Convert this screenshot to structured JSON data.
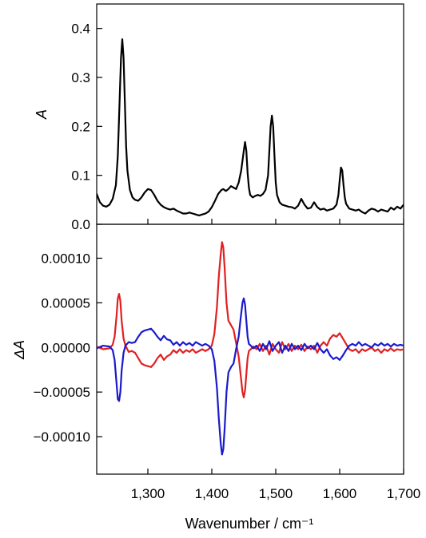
{
  "chart_data": [
    {
      "type": "line",
      "panel": "top",
      "title": "",
      "xlabel": "Wavenumber / cm⁻¹",
      "ylabel": "A",
      "xlim": [
        1220,
        1700
      ],
      "ylim": [
        0.0,
        0.45
      ],
      "xticks": [
        1300,
        1400,
        1500,
        1600,
        1700
      ],
      "xtick_labels": [
        "1,300",
        "1,400",
        "1,500",
        "1,600",
        "1,700"
      ],
      "yticks": [
        0.0,
        0.1,
        0.2,
        0.3,
        0.4
      ],
      "ytick_labels": [
        "0.0",
        "0.1",
        "0.2",
        "0.3",
        "0.4"
      ],
      "grid": false,
      "series": [
        {
          "color": "#000000",
          "x": [
            1220,
            1225,
            1230,
            1235,
            1240,
            1245,
            1250,
            1253,
            1256,
            1258,
            1260,
            1262,
            1264,
            1266,
            1268,
            1272,
            1276,
            1280,
            1285,
            1290,
            1295,
            1300,
            1305,
            1310,
            1315,
            1320,
            1325,
            1330,
            1335,
            1340,
            1345,
            1350,
            1355,
            1360,
            1365,
            1370,
            1375,
            1380,
            1385,
            1390,
            1395,
            1400,
            1405,
            1410,
            1415,
            1418,
            1422,
            1426,
            1430,
            1434,
            1438,
            1442,
            1446,
            1450,
            1452,
            1454,
            1456,
            1458,
            1460,
            1464,
            1468,
            1472,
            1476,
            1480,
            1484,
            1488,
            1490,
            1492,
            1494,
            1496,
            1498,
            1500,
            1502,
            1506,
            1510,
            1515,
            1520,
            1525,
            1530,
            1535,
            1540,
            1545,
            1550,
            1555,
            1560,
            1565,
            1570,
            1575,
            1580,
            1585,
            1590,
            1595,
            1598,
            1600,
            1602,
            1604,
            1606,
            1608,
            1610,
            1615,
            1620,
            1625,
            1630,
            1635,
            1640,
            1645,
            1650,
            1655,
            1660,
            1665,
            1670,
            1675,
            1680,
            1685,
            1690,
            1695,
            1700
          ],
          "y": [
            0.062,
            0.045,
            0.038,
            0.036,
            0.04,
            0.052,
            0.08,
            0.14,
            0.26,
            0.34,
            0.378,
            0.34,
            0.25,
            0.16,
            0.11,
            0.07,
            0.055,
            0.05,
            0.048,
            0.055,
            0.065,
            0.072,
            0.07,
            0.06,
            0.048,
            0.04,
            0.035,
            0.032,
            0.03,
            0.032,
            0.028,
            0.025,
            0.022,
            0.022,
            0.024,
            0.022,
            0.02,
            0.018,
            0.02,
            0.022,
            0.026,
            0.035,
            0.048,
            0.062,
            0.07,
            0.072,
            0.068,
            0.072,
            0.078,
            0.075,
            0.072,
            0.085,
            0.11,
            0.15,
            0.168,
            0.15,
            0.105,
            0.075,
            0.06,
            0.055,
            0.058,
            0.06,
            0.058,
            0.062,
            0.07,
            0.1,
            0.15,
            0.2,
            0.222,
            0.2,
            0.14,
            0.085,
            0.06,
            0.045,
            0.04,
            0.038,
            0.036,
            0.035,
            0.032,
            0.038,
            0.052,
            0.04,
            0.032,
            0.034,
            0.045,
            0.035,
            0.03,
            0.032,
            0.028,
            0.03,
            0.032,
            0.04,
            0.06,
            0.09,
            0.116,
            0.11,
            0.08,
            0.055,
            0.042,
            0.032,
            0.03,
            0.028,
            0.03,
            0.025,
            0.022,
            0.028,
            0.032,
            0.03,
            0.026,
            0.03,
            0.028,
            0.026,
            0.034,
            0.03,
            0.036,
            0.032,
            0.04
          ]
        }
      ]
    },
    {
      "type": "line",
      "panel": "bottom",
      "title": "",
      "xlabel": "Wavenumber / cm⁻¹",
      "ylabel": "ΔA",
      "xlim": [
        1220,
        1700
      ],
      "ylim": [
        -0.000142,
        0.000138
      ],
      "xticks": [
        1300,
        1400,
        1500,
        1600,
        1700
      ],
      "xtick_labels": [
        "1,300",
        "1,400",
        "1,500",
        "1,600",
        "1,700"
      ],
      "yticks": [
        -0.0001,
        -5e-05,
        0.0,
        5e-05,
        0.0001
      ],
      "ytick_labels": [
        "−0.00010",
        "−0.00005",
        "0.00000",
        "0.00005",
        "0.00010"
      ],
      "grid": false,
      "series": [
        {
          "color": "#e02020",
          "x": [
            1220,
            1230,
            1240,
            1245,
            1248,
            1251,
            1253,
            1255,
            1257,
            1259,
            1262,
            1265,
            1270,
            1275,
            1280,
            1285,
            1290,
            1295,
            1300,
            1305,
            1310,
            1315,
            1320,
            1325,
            1330,
            1335,
            1340,
            1345,
            1350,
            1355,
            1360,
            1365,
            1370,
            1375,
            1380,
            1385,
            1390,
            1395,
            1400,
            1404,
            1408,
            1411,
            1414,
            1416,
            1418,
            1420,
            1423,
            1426,
            1430,
            1434,
            1438,
            1442,
            1445,
            1448,
            1450,
            1452,
            1454,
            1456,
            1458,
            1461,
            1465,
            1470,
            1475,
            1480,
            1485,
            1490,
            1495,
            1500,
            1505,
            1510,
            1515,
            1520,
            1525,
            1530,
            1535,
            1540,
            1545,
            1550,
            1555,
            1560,
            1565,
            1570,
            1575,
            1580,
            1585,
            1590,
            1595,
            1600,
            1605,
            1610,
            1615,
            1620,
            1625,
            1630,
            1635,
            1640,
            1645,
            1650,
            1655,
            1660,
            1665,
            1670,
            1675,
            1680,
            1685,
            1690,
            1695,
            1700
          ],
          "y": [
            1e-06,
            -2e-06,
            -1e-06,
            3e-06,
            1.2e-05,
            3.5e-05,
            5.5e-05,
            6e-05,
            5.2e-05,
            3e-05,
            1e-05,
            2e-06,
            -5e-06,
            -4e-06,
            -6e-06,
            -1.2e-05,
            -1.8e-05,
            -2e-05,
            -2.1e-05,
            -2.2e-05,
            -1.8e-05,
            -1.2e-05,
            -8e-06,
            -1.4e-05,
            -1e-05,
            -8e-06,
            -3e-06,
            -6e-06,
            -2e-06,
            -6e-06,
            -3e-06,
            -5e-06,
            -2e-06,
            -6e-06,
            -4e-06,
            -2e-06,
            -4e-06,
            -2e-06,
            2e-06,
            1.5e-05,
            4.5e-05,
            8e-05,
            0.000105,
            0.000118,
            0.000112,
            9e-05,
            5e-05,
            3e-05,
            2.5e-05,
            2e-05,
            5e-06,
            -1e-05,
            -3e-05,
            -5e-05,
            -5.6e-05,
            -4.8e-05,
            -3e-05,
            -1.2e-05,
            -4e-06,
            -2e-06,
            1e-06,
            -2e-06,
            4e-06,
            -4e-06,
            2e-06,
            -8e-06,
            4e-06,
            -2e-06,
            -6e-06,
            6e-06,
            -2e-06,
            4e-06,
            -4e-06,
            2e-06,
            -2e-06,
            3e-06,
            -4e-06,
            1e-06,
            -2e-06,
            2e-06,
            -6e-06,
            2e-06,
            6e-06,
            2e-06,
            1e-05,
            1.4e-05,
            1.2e-05,
            1.6e-05,
            1e-05,
            4e-06,
            -2e-06,
            -4e-06,
            -2e-06,
            -6e-06,
            -2e-06,
            -4e-06,
            -2e-06,
            0.0,
            -4e-06,
            -2e-06,
            -6e-06,
            -2e-06,
            -4e-06,
            -1e-06,
            -4e-06,
            -2e-06,
            -3e-06,
            -2e-06
          ]
        },
        {
          "color": "#1a1acc",
          "x": [
            1220,
            1230,
            1240,
            1245,
            1248,
            1251,
            1253,
            1255,
            1257,
            1259,
            1262,
            1265,
            1270,
            1275,
            1280,
            1285,
            1290,
            1295,
            1300,
            1305,
            1310,
            1315,
            1320,
            1325,
            1330,
            1335,
            1340,
            1345,
            1350,
            1355,
            1360,
            1365,
            1370,
            1375,
            1380,
            1385,
            1390,
            1395,
            1400,
            1404,
            1408,
            1411,
            1414,
            1416,
            1418,
            1420,
            1423,
            1426,
            1430,
            1434,
            1438,
            1442,
            1445,
            1448,
            1450,
            1452,
            1454,
            1456,
            1458,
            1461,
            1465,
            1470,
            1475,
            1480,
            1485,
            1490,
            1495,
            1500,
            1505,
            1510,
            1515,
            1520,
            1525,
            1530,
            1535,
            1540,
            1545,
            1550,
            1555,
            1560,
            1565,
            1570,
            1575,
            1580,
            1585,
            1590,
            1595,
            1600,
            1605,
            1610,
            1615,
            1620,
            1625,
            1630,
            1635,
            1640,
            1645,
            1650,
            1655,
            1660,
            1665,
            1670,
            1675,
            1680,
            1685,
            1690,
            1695,
            1700
          ],
          "y": [
            -1e-06,
            2e-06,
            1e-06,
            -3e-06,
            -1.4e-05,
            -4e-05,
            -5.8e-05,
            -6e-05,
            -5e-05,
            -2.6e-05,
            -6e-06,
            2e-06,
            6e-06,
            5e-06,
            6e-06,
            1.2e-05,
            1.7e-05,
            1.9e-05,
            2e-05,
            2.1e-05,
            1.7e-05,
            1.2e-05,
            8e-06,
            1.3e-05,
            9e-06,
            8e-06,
            3e-06,
            6e-06,
            2e-06,
            6e-06,
            3e-06,
            5e-06,
            2e-06,
            6e-06,
            4e-06,
            2e-06,
            4e-06,
            2e-06,
            -2e-06,
            -1.5e-05,
            -4.5e-05,
            -8e-05,
            -0.000108,
            -0.00012,
            -0.000114,
            -9.2e-05,
            -5e-05,
            -2.8e-05,
            -2.2e-05,
            -1.8e-05,
            -2e-06,
            1.2e-05,
            3.2e-05,
            5e-05,
            5.5e-05,
            4.8e-05,
            3e-05,
            1.2e-05,
            4e-06,
            2e-06,
            -1e-06,
            2e-06,
            -4e-06,
            4e-06,
            -2e-06,
            7e-06,
            -4e-06,
            2e-06,
            6e-06,
            -6e-06,
            2e-06,
            -4e-06,
            4e-06,
            -2e-06,
            2e-06,
            -3e-06,
            4e-06,
            -1e-06,
            2e-06,
            -2e-06,
            5e-06,
            -2e-06,
            -6e-06,
            -2e-06,
            -9e-06,
            -1.3e-05,
            -1.1e-05,
            -1.4e-05,
            -9e-06,
            -3e-06,
            2e-06,
            4e-06,
            2e-06,
            6e-06,
            2e-06,
            4e-06,
            2e-06,
            0.0,
            4e-06,
            2e-06,
            5e-06,
            2e-06,
            4e-06,
            1e-06,
            4e-06,
            2e-06,
            3e-06,
            2e-06
          ]
        }
      ]
    }
  ]
}
